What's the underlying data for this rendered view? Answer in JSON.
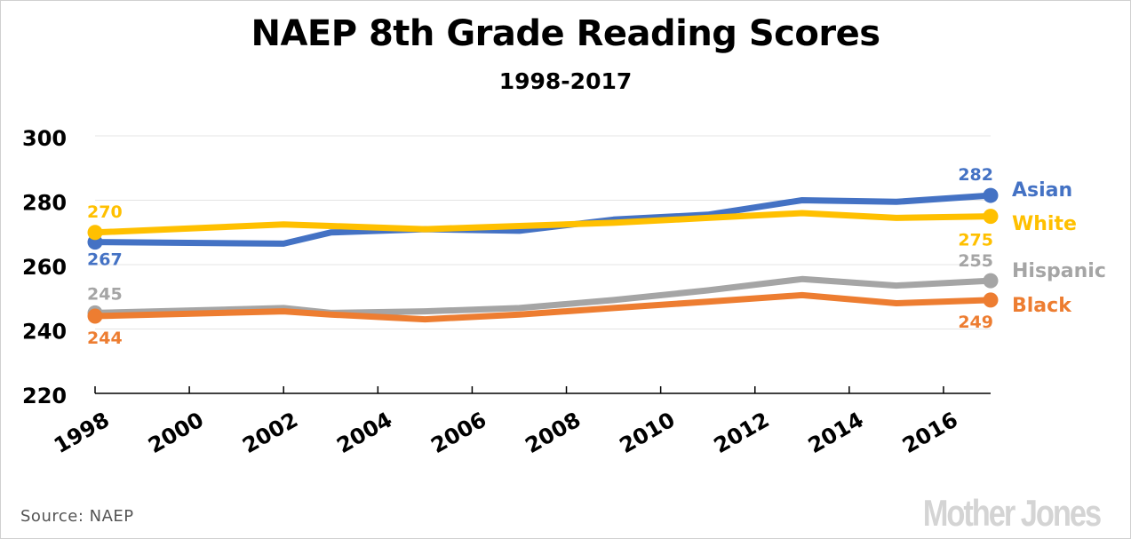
{
  "chart_data": {
    "type": "line",
    "title": "NAEP 8th Grade Reading Scores",
    "subtitle": "1998-2017",
    "xlabel": "",
    "ylabel": "",
    "xlim": [
      1998,
      2017
    ],
    "ylim": [
      220,
      300
    ],
    "yticks": [
      220,
      240,
      260,
      280,
      300
    ],
    "xticks": [
      "1998",
      "2000",
      "2002",
      "2004",
      "2006",
      "2008",
      "2010",
      "2012",
      "2014",
      "2016"
    ],
    "grid": true,
    "series": [
      {
        "name": "Asian",
        "color": "#4472c4",
        "x": [
          1998,
          2002,
          2003,
          2005,
          2007,
          2009,
          2011,
          2013,
          2015,
          2017
        ],
        "values": [
          267,
          266.5,
          270,
          271,
          270.5,
          274,
          275.5,
          280,
          279.5,
          281.5
        ],
        "start_label": "267",
        "end_label": "282"
      },
      {
        "name": "White",
        "color": "#ffc000",
        "x": [
          1998,
          2002,
          2003,
          2005,
          2007,
          2009,
          2011,
          2013,
          2015,
          2017
        ],
        "values": [
          270,
          272.5,
          272,
          271,
          272,
          273,
          274.5,
          276,
          274.5,
          275
        ],
        "start_label": "270",
        "end_label": "275"
      },
      {
        "name": "Hispanic",
        "color": "#a5a5a5",
        "x": [
          1998,
          2002,
          2003,
          2005,
          2007,
          2009,
          2011,
          2013,
          2015,
          2017
        ],
        "values": [
          245,
          246.5,
          245,
          245.5,
          246.5,
          249,
          252,
          255.5,
          253.5,
          255
        ],
        "start_label": "245",
        "end_label": "255"
      },
      {
        "name": "Black",
        "color": "#ed7d31",
        "x": [
          1998,
          2002,
          2003,
          2005,
          2007,
          2009,
          2011,
          2013,
          2015,
          2017
        ],
        "values": [
          244,
          245.5,
          244.5,
          243,
          244.5,
          246.5,
          248.5,
          250.5,
          248,
          249
        ],
        "start_label": "244",
        "end_label": "249"
      }
    ]
  },
  "footer": {
    "source": "Source: NAEP",
    "watermark": "Mother Jones"
  }
}
